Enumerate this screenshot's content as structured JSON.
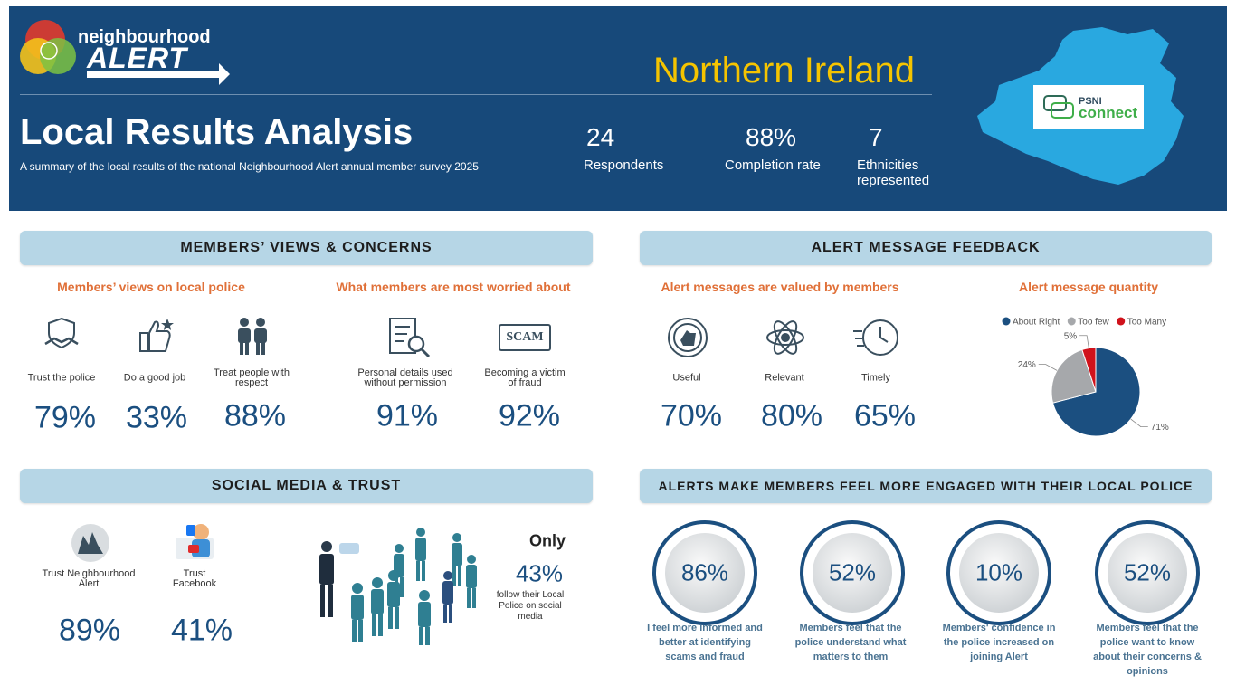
{
  "header": {
    "logo_top": "neighbourhood",
    "logo_bottom": "ALERT",
    "region": "Northern Ireland",
    "title": "Local Results Analysis",
    "subtitle": "A summary of the local results of the national Neighbourhood Alert annual member survey 2025",
    "stats": [
      {
        "value": "24",
        "label": "Respondents"
      },
      {
        "value": "88%",
        "label": "Completion rate"
      },
      {
        "value": "7",
        "label": "Ethnicities represented"
      }
    ],
    "partner_logo": {
      "top": "PSNI",
      "bottom": "connect"
    }
  },
  "members_views": {
    "heading": "MEMBERS’ VIEWS & CONCERNS",
    "police": {
      "title": "Members’ views on local police",
      "items": [
        {
          "label": "Trust the police",
          "value": "79%"
        },
        {
          "label": "Do a good job",
          "value": "33%"
        },
        {
          "label": "Treat people with respect",
          "value": "88%"
        }
      ]
    },
    "worries": {
      "title": "What members are most worried about",
      "icon_text": "SCAM",
      "items": [
        {
          "label": "Personal details used without permission",
          "value": "91%"
        },
        {
          "label": "Becoming a victim of fraud",
          "value": "92%"
        }
      ]
    }
  },
  "alert_feedback": {
    "heading": "ALERT MESSAGE FEEDBACK",
    "valued": {
      "title": "Alert messages are valued by members",
      "items": [
        {
          "label": "Useful",
          "value": "70%"
        },
        {
          "label": "Relevant",
          "value": "80%"
        },
        {
          "label": "Timely",
          "value": "65%"
        }
      ]
    }
  },
  "chart_data": {
    "type": "pie",
    "title": "Alert message quantity",
    "categories": [
      "About Right",
      "Too few",
      "Too Many"
    ],
    "values": [
      71,
      24,
      5
    ],
    "value_labels": [
      "71%",
      "24%",
      "5%"
    ],
    "colors": [
      "#1b4f80",
      "#a6a8ab",
      "#d0121b"
    ],
    "legend": "top"
  },
  "social_media": {
    "heading": "SOCIAL MEDIA & TRUST",
    "items": [
      {
        "label": "Trust Neighbourhood Alert",
        "value": "89%"
      },
      {
        "label": "Trust Facebook",
        "value": "41%"
      }
    ],
    "follow": {
      "lead": "Only",
      "value": "43%",
      "label": "follow their Local Police on social media"
    }
  },
  "engagement": {
    "heading": "ALERTS MAKE MEMBERS FEEL MORE ENGAGED WITH THEIR LOCAL POLICE",
    "items": [
      {
        "value": "86%",
        "label": "I feel more informed and better at identifying scams and fraud"
      },
      {
        "value": "52%",
        "label": "Members feel that the police understand what matters to them"
      },
      {
        "value": "10%",
        "label": "Members' confidence in the police increased on joining Alert"
      },
      {
        "value": "52%",
        "label": "Members feel that the police want to know about their concerns & opinions"
      }
    ]
  }
}
